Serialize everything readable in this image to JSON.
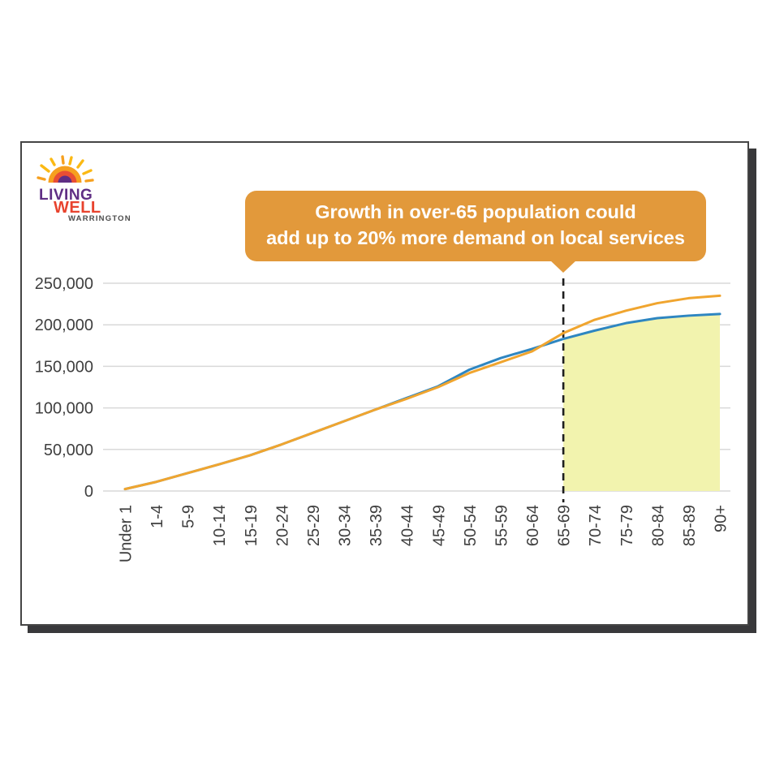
{
  "logo": {
    "line1": "LIVING",
    "line2": "WELL",
    "line3": "WARRINGTON",
    "colors": {
      "living": "#5f2e84",
      "well": "#e8432e",
      "town": "#4b4b4b",
      "sun_ray_yellow": "#fbb913",
      "sun_arc_outer": "#f6a01f",
      "sun_arc_middle": "#e94e34",
      "sun_arc_inner": "#5f2e84"
    }
  },
  "callout": {
    "line1": "Growth in over-65 population could",
    "line2": "add up to 20% more demand on local services",
    "bg": "#e2993b",
    "text_color": "#ffffff",
    "points_to_category": "65-69"
  },
  "chart_data": {
    "type": "line",
    "categories": [
      "Under 1",
      "1-4",
      "5-9",
      "10-14",
      "15-19",
      "20-24",
      "25-29",
      "30-34",
      "35-39",
      "40-44",
      "45-49",
      "50-54",
      "55-59",
      "60-64",
      "65-69",
      "70-74",
      "75-79",
      "80-84",
      "85-89",
      "90+"
    ],
    "series": [
      {
        "name": "blue-line",
        "color": "#2e86c1",
        "values": [
          2300,
          11000,
          21500,
          32000,
          43000,
          56000,
          70000,
          84000,
          98000,
          112000,
          126000,
          146000,
          160000,
          171000,
          183000,
          193000,
          202000,
          208000,
          211000,
          213000
        ]
      },
      {
        "name": "orange-line",
        "color": "#f0a52f",
        "values": [
          2300,
          11000,
          21500,
          32000,
          43000,
          56000,
          70000,
          84000,
          98000,
          111000,
          125000,
          142000,
          155000,
          168000,
          190000,
          206000,
          217000,
          226000,
          232000,
          235000
        ]
      }
    ],
    "ylim": [
      0,
      250000
    ],
    "yticks": [
      0,
      50000,
      100000,
      150000,
      200000,
      250000
    ],
    "ytick_labels": [
      "0",
      "50,000",
      "100,000",
      "150,000",
      "200,000",
      "250,000"
    ],
    "grid": "horizontal",
    "grid_color": "#d9d9d9",
    "legend": "none",
    "highlight": {
      "start_category": "65-69",
      "end_category": "90+",
      "area_color": "#f2f3ae",
      "boundary_series": "blue-line",
      "divider_style": "dashed",
      "divider_color": "#1f1f1f"
    }
  }
}
